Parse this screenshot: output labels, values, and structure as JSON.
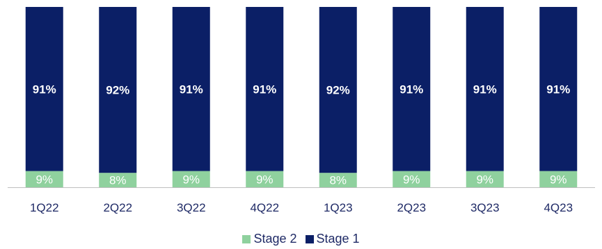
{
  "chart_data": {
    "type": "bar",
    "stacked": true,
    "categories": [
      "1Q22",
      "2Q22",
      "3Q22",
      "4Q22",
      "1Q23",
      "2Q23",
      "3Q23",
      "4Q23"
    ],
    "series": [
      {
        "name": "Stage 2",
        "values": [
          9,
          8,
          9,
          9,
          8,
          9,
          9,
          9
        ],
        "labels": [
          "9%",
          "8%",
          "9%",
          "9%",
          "8%",
          "9%",
          "9%",
          "9%"
        ],
        "color": "#8fd19e"
      },
      {
        "name": "Stage 1",
        "values": [
          91,
          92,
          91,
          91,
          92,
          91,
          91,
          91
        ],
        "labels": [
          "91%",
          "92%",
          "91%",
          "91%",
          "92%",
          "91%",
          "91%",
          "91%"
        ],
        "color": "#0b1f66"
      }
    ],
    "ylim": [
      0,
      100
    ],
    "grid": false,
    "legend_position": "bottom-center"
  }
}
